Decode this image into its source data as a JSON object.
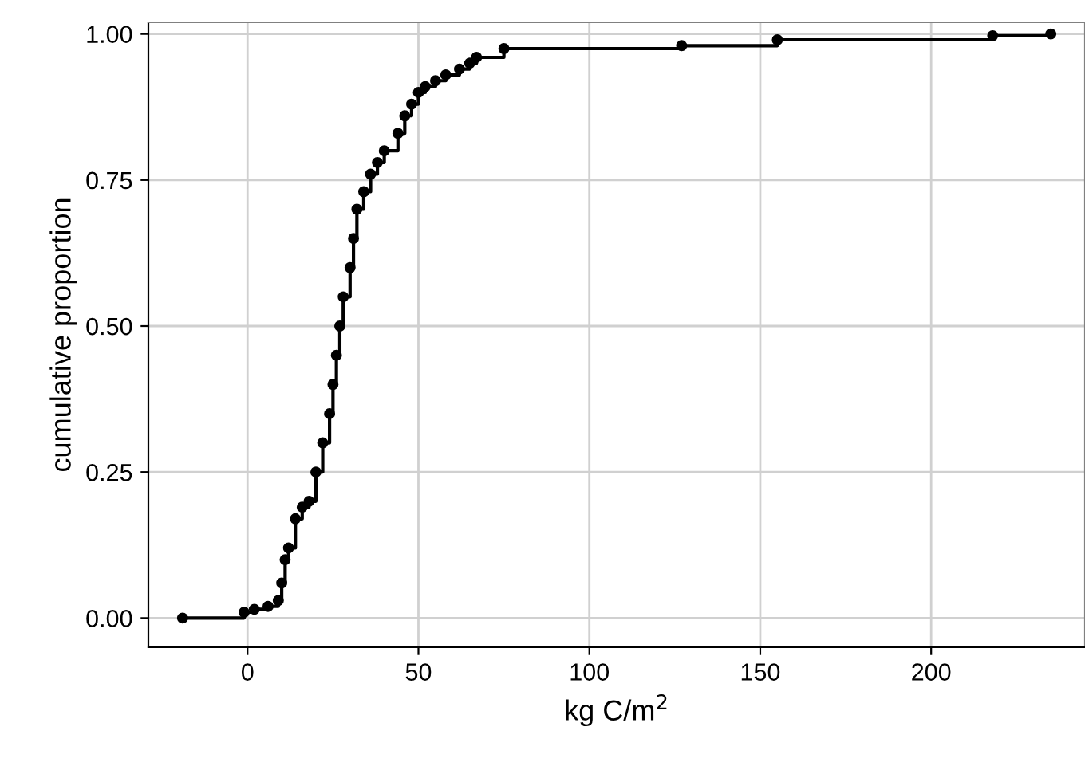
{
  "chart_data": {
    "type": "step",
    "xlabel": "kg C/m$^{2}$",
    "ylabel": "cumulative proportion",
    "x": [
      -19,
      -1,
      2,
      6,
      9,
      10,
      11,
      12,
      14,
      16,
      18,
      20,
      22,
      24,
      25,
      26,
      27,
      28,
      30,
      31,
      32,
      34,
      36,
      38,
      40,
      44,
      46,
      48,
      50,
      52,
      55,
      58,
      62,
      65,
      67,
      75,
      127,
      155,
      218,
      235
    ],
    "series": [
      {
        "color": "#000000",
        "values": [
          0.0,
          0.01,
          0.015,
          0.02,
          0.03,
          0.06,
          0.1,
          0.12,
          0.17,
          0.19,
          0.2,
          0.25,
          0.3,
          0.35,
          0.4,
          0.45,
          0.5,
          0.55,
          0.6,
          0.65,
          0.7,
          0.73,
          0.76,
          0.78,
          0.8,
          0.83,
          0.86,
          0.88,
          0.9,
          0.91,
          0.92,
          0.93,
          0.94,
          0.95,
          0.96,
          0.975,
          0.98,
          0.99,
          0.997,
          1.0
        ]
      }
    ],
    "xlim": [
      -29,
      245
    ],
    "ylim": [
      -0.05,
      1.02
    ],
    "xticks": [
      0,
      50,
      100,
      150,
      200
    ],
    "yticks": [
      {
        "value": 0,
        "label": "0.00"
      },
      {
        "value": 0.25,
        "label": "0.25"
      },
      {
        "value": 0.5,
        "label": "0.50"
      },
      {
        "value": 0.75,
        "label": "0.75"
      },
      {
        "value": 1,
        "label": "1.00"
      }
    ],
    "grid": true,
    "marker": "circle",
    "line_style": "solid"
  }
}
